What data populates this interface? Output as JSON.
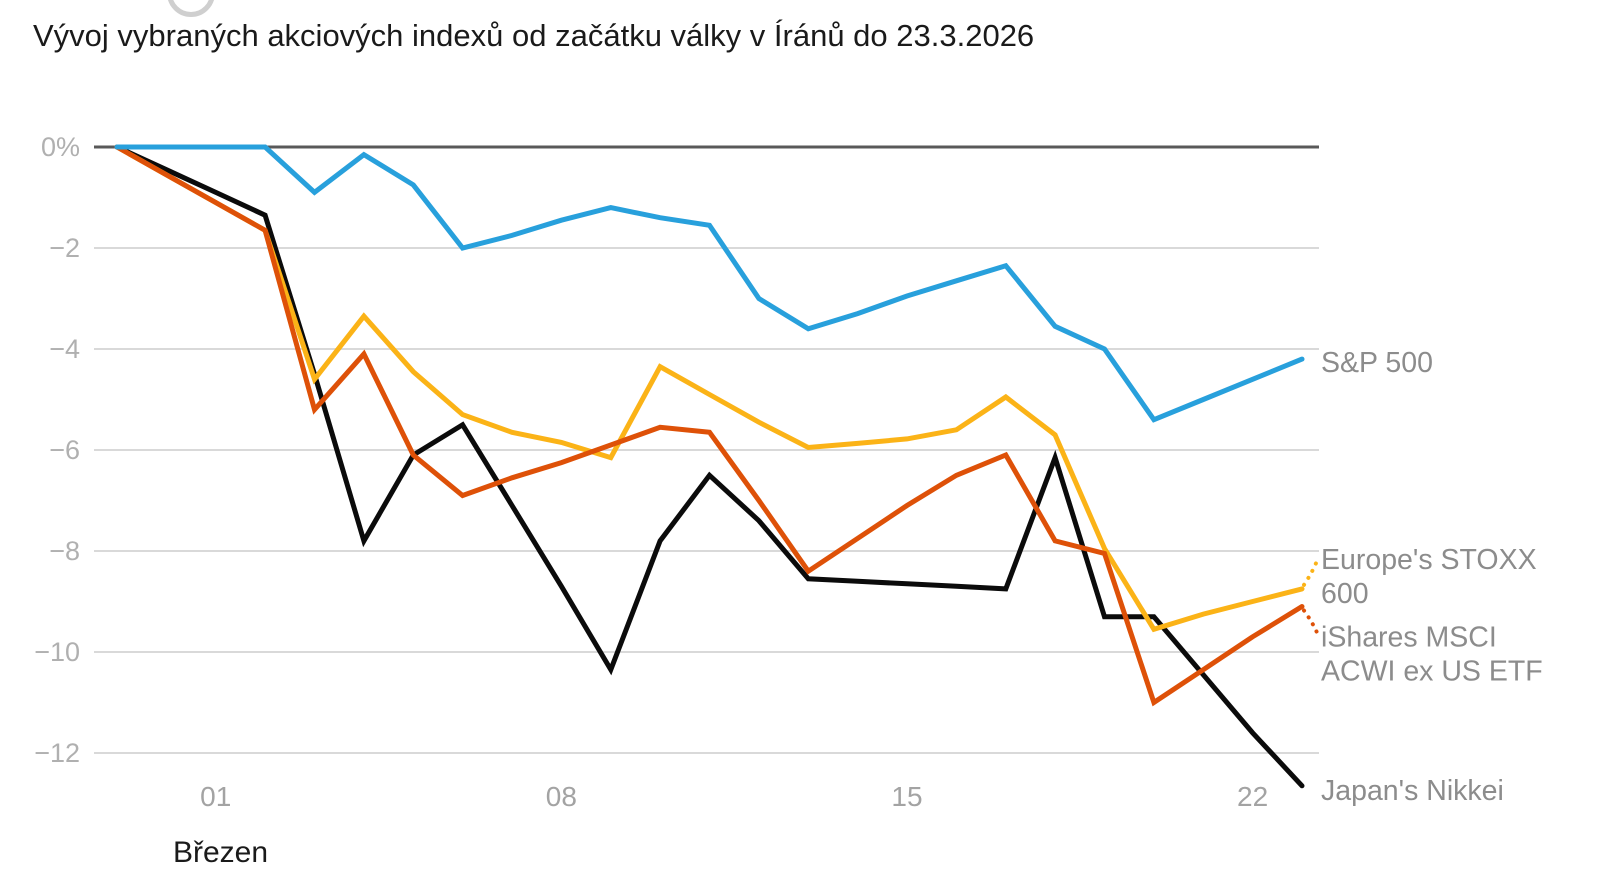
{
  "title": "Vývoj vybraných akciových indexů od začátku války v Íránů do 23.3.2026",
  "chart_data": {
    "type": "line",
    "title": "Vývoj vybraných akciových indexů od začátku války v Íránů do 23.3.2026",
    "grid": true,
    "legend_position": "right-of-line-ends",
    "x_axis": {
      "month_label": "Březen",
      "n_points": 25,
      "ticks": [
        {
          "index": 2,
          "label": "01"
        },
        {
          "index": 9,
          "label": "08"
        },
        {
          "index": 16,
          "label": "15"
        },
        {
          "index": 23,
          "label": "22"
        }
      ]
    },
    "y_axis": {
      "unit": "%",
      "range": [
        -12.8,
        0.3
      ],
      "ticks": [
        {
          "value": 0,
          "label": "0%"
        },
        {
          "value": -2,
          "label": "−2"
        },
        {
          "value": -4,
          "label": "−4"
        },
        {
          "value": -6,
          "label": "−6"
        },
        {
          "value": -8,
          "label": "−8"
        },
        {
          "value": -10,
          "label": "−10"
        },
        {
          "value": -12,
          "label": "−12"
        }
      ]
    },
    "series": [
      {
        "id": "sp500",
        "name": "S&P 500",
        "label_lines": [
          "S&P 500"
        ],
        "color": "#28A0DC",
        "leader": false,
        "values": [
          0,
          0,
          0,
          0,
          -0.9,
          -0.15,
          -0.75,
          -2.0,
          -1.75,
          -1.45,
          -1.2,
          -1.4,
          -1.55,
          -3.0,
          -3.6,
          -3.3,
          -2.95,
          -2.65,
          -2.35,
          -3.55,
          -4.0,
          -5.4,
          -5.0,
          -4.6,
          -4.2
        ]
      },
      {
        "id": "stoxx600",
        "name": "Europe's STOXX 600",
        "label_lines": [
          "Europe's STOXX",
          "600"
        ],
        "color": "#FBB317",
        "leader": true,
        "values": [
          0,
          -0.55,
          -1.1,
          -1.65,
          -4.6,
          -3.35,
          -4.45,
          -5.3,
          -5.65,
          -5.85,
          -6.15,
          -4.35,
          -4.9,
          -5.45,
          -5.95,
          -5.87,
          -5.78,
          -5.6,
          -4.95,
          -5.7,
          -7.95,
          -9.55,
          -9.25,
          -9.0,
          -8.75
        ]
      },
      {
        "id": "ishares-acwi-ex-us",
        "name": "iShares MSCI ACWI ex US ETF",
        "label_lines": [
          "iShares MSCI",
          "ACWI ex US ETF"
        ],
        "color": "#DE5108",
        "leader": true,
        "values": [
          0,
          -0.55,
          -1.1,
          -1.65,
          -5.2,
          -4.1,
          -6.1,
          -6.9,
          -6.55,
          -6.25,
          -5.9,
          -5.55,
          -5.65,
          -7.0,
          -8.4,
          -7.75,
          -7.1,
          -6.5,
          -6.1,
          -7.8,
          -8.05,
          -11.0,
          -10.35,
          -9.7,
          -9.1
        ]
      },
      {
        "id": "nikkei",
        "name": "Japan's Nikkei",
        "label_lines": [
          "Japan's Nikkei"
        ],
        "color": "#0B0B0B",
        "leader": false,
        "values": [
          0,
          -0.45,
          -0.9,
          -1.35,
          -4.5,
          -7.8,
          -6.1,
          -5.5,
          -7.1,
          -8.7,
          -10.35,
          -7.8,
          -6.5,
          -7.4,
          -8.55,
          -8.6,
          -8.65,
          -8.7,
          -8.75,
          -6.15,
          -9.3,
          -9.3,
          -10.45,
          -11.6,
          -12.65
        ]
      }
    ],
    "colors": {
      "gridline": "#d9d9d9",
      "zero_line": "#595959",
      "y_tick_label": "#b0b0b0",
      "x_tick_label": "#a3a3a3",
      "series_label": "#8c8c8c",
      "title": "#1a1a1a"
    }
  }
}
